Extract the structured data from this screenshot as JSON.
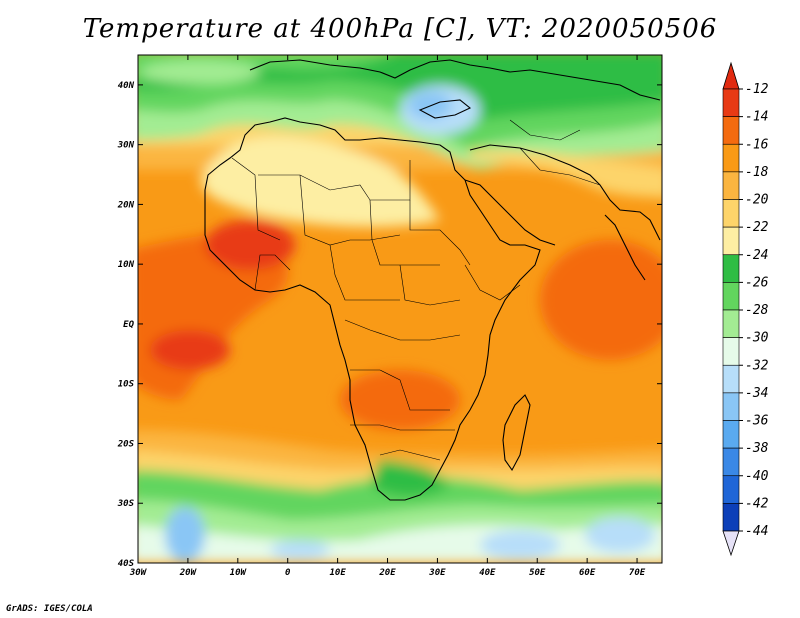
{
  "title": "Temperature at 400hPa [C], VT: 2020050506",
  "credit": "GrADS: IGES/COLA",
  "map": {
    "lon_range": [
      -30,
      75
    ],
    "lat_range": [
      -40,
      45
    ],
    "lat_ticks": [
      "40N",
      "30N",
      "20N",
      "10N",
      "EQ",
      "10S",
      "20S",
      "30S",
      "40S"
    ],
    "lon_ticks": [
      "30W",
      "20W",
      "10W",
      "0",
      "10E",
      "20E",
      "30E",
      "40E",
      "50E",
      "60E",
      "70E"
    ]
  },
  "colorbar": {
    "labels": [
      "-12",
      "-14",
      "-16",
      "-18",
      "-20",
      "-22",
      "-24",
      "-26",
      "-28",
      "-30",
      "-32",
      "-34",
      "-36",
      "-38",
      "-40",
      "-42",
      "-44"
    ],
    "colors": [
      "#e83a14",
      "#f46b0f",
      "#f99a16",
      "#fbb540",
      "#fdd46a",
      "#fdeea3",
      "#2fbd44",
      "#62d55e",
      "#a3ec93",
      "#e6fbe9",
      "#b7def9",
      "#8ac6f5",
      "#5aaaf0",
      "#3a88e6",
      "#1f66d7",
      "#0c3fb8",
      "#061872"
    ],
    "top_color": "#e12a10",
    "bottom_color": "#e6e2f7"
  }
}
